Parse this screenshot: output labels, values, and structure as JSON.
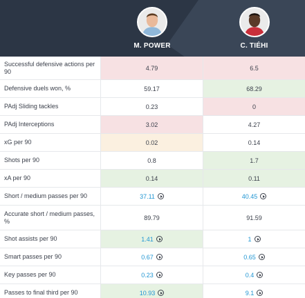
{
  "players": [
    {
      "name": "M. POWER"
    },
    {
      "name": "C. TIÉHI"
    }
  ],
  "colors": {
    "header_bg": "#2c3645",
    "better": "#e6f2e2",
    "worse": "#f7e1e3",
    "neutral": "#fbf0e0",
    "link": "#2196d3"
  },
  "rows": [
    {
      "label": "Successful defensive actions per 90",
      "v1": "4.79",
      "v2": "6.5",
      "bg1": "red",
      "bg2": "red",
      "link": false
    },
    {
      "label": "Defensive duels won, %",
      "v1": "59.17",
      "v2": "68.29",
      "bg1": "",
      "bg2": "green",
      "link": false
    },
    {
      "label": "PAdj Sliding tackles",
      "v1": "0.23",
      "v2": "0",
      "bg1": "",
      "bg2": "red",
      "link": false
    },
    {
      "label": "PAdj Interceptions",
      "v1": "3.02",
      "v2": "4.27",
      "bg1": "red",
      "bg2": "",
      "link": false
    },
    {
      "label": "xG per 90",
      "v1": "0.02",
      "v2": "0.14",
      "bg1": "peach",
      "bg2": "",
      "link": false
    },
    {
      "label": "Shots per 90",
      "v1": "0.8",
      "v2": "1.7",
      "bg1": "",
      "bg2": "green",
      "link": false
    },
    {
      "label": "xA per 90",
      "v1": "0.14",
      "v2": "0.11",
      "bg1": "green",
      "bg2": "green",
      "link": false
    },
    {
      "label": "Short / medium passes per 90",
      "v1": "37.11",
      "v2": "40.45",
      "bg1": "",
      "bg2": "",
      "link": true
    },
    {
      "label": "Accurate short / medium passes, %",
      "v1": "89.79",
      "v2": "91.59",
      "bg1": "",
      "bg2": "",
      "link": false
    },
    {
      "label": "Shot assists per 90",
      "v1": "1.41",
      "v2": "1",
      "bg1": "green",
      "bg2": "",
      "link": true
    },
    {
      "label": "Smart passes per 90",
      "v1": "0.67",
      "v2": "0.65",
      "bg1": "",
      "bg2": "",
      "link": true
    },
    {
      "label": "Key passes per 90",
      "v1": "0.23",
      "v2": "0.4",
      "bg1": "",
      "bg2": "",
      "link": true
    },
    {
      "label": "Passes to final third per 90",
      "v1": "10.93",
      "v2": "9.1",
      "bg1": "green",
      "bg2": "",
      "link": true
    }
  ]
}
